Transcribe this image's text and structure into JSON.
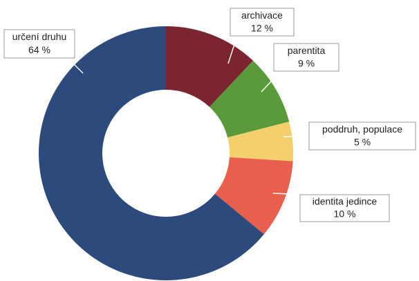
{
  "chart_data": {
    "type": "donut",
    "categories": [
      "archivace",
      "parentita",
      "poddruh, populace",
      "identita jedince",
      "určení druhu"
    ],
    "values": [
      12,
      9,
      5,
      10,
      64
    ],
    "value_labels": [
      "12 %",
      "9 %",
      "5 %",
      "10 %",
      "64 %"
    ],
    "colors": [
      "#7b2531",
      "#5b9a3b",
      "#f4d06c",
      "#e8604d",
      "#2c4a7b"
    ]
  }
}
